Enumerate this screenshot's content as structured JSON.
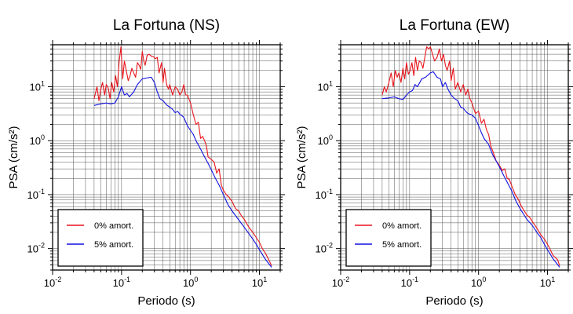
{
  "colors": {
    "undamped": "#e8141b",
    "damped": "#1010e0",
    "grid": "#555555",
    "frame": "#000000"
  },
  "chart_data": [
    {
      "type": "line",
      "title": "La Fortuna (NS)",
      "xlabel": "Periodo (s)",
      "ylabel": "PSA (cm/s²)",
      "xscale": "log",
      "yscale": "log",
      "xlim": [
        0.01,
        20
      ],
      "ylim": [
        0.004,
        60
      ],
      "x_ticks": [
        {
          "value": 0.01,
          "base": "10",
          "exp": "-2"
        },
        {
          "value": 0.1,
          "base": "10",
          "exp": "-1"
        },
        {
          "value": 1,
          "base": "10",
          "exp": "0"
        },
        {
          "value": 10,
          "base": "10",
          "exp": "1"
        }
      ],
      "y_ticks": [
        {
          "value": 0.01,
          "base": "10",
          "exp": "-2"
        },
        {
          "value": 0.1,
          "base": "10",
          "exp": "-1"
        },
        {
          "value": 1,
          "base": "10",
          "exp": "0"
        },
        {
          "value": 10,
          "base": "10",
          "exp": "1"
        }
      ],
      "grid": true,
      "legend_position": "bottom-left",
      "series": [
        {
          "name": "0% amort.",
          "color_key": "undamped",
          "x": [
            0.04,
            0.044,
            0.047,
            0.05,
            0.053,
            0.057,
            0.06,
            0.064,
            0.068,
            0.072,
            0.077,
            0.082,
            0.087,
            0.092,
            0.098,
            0.104,
            0.11,
            0.117,
            0.125,
            0.133,
            0.141,
            0.15,
            0.16,
            0.17,
            0.18,
            0.19,
            0.2,
            0.21,
            0.22,
            0.235,
            0.25,
            0.27,
            0.29,
            0.31,
            0.33,
            0.35,
            0.38,
            0.4,
            0.42,
            0.45,
            0.48,
            0.5,
            0.55,
            0.6,
            0.65,
            0.7,
            0.75,
            0.8,
            0.85,
            0.9,
            1.0,
            1.1,
            1.2,
            1.3,
            1.4,
            1.5,
            1.6,
            1.7,
            1.8,
            2.0,
            2.2,
            2.4,
            2.6,
            2.8,
            3.0,
            3.3,
            3.6,
            4.0,
            4.5,
            5.0,
            5.5,
            6.0,
            7.0,
            8.0,
            9.0,
            10.0,
            11.0,
            12.0,
            13.0,
            14.0,
            15.0
          ],
          "y": [
            6,
            10,
            5.5,
            9,
            12,
            7,
            11,
            9.5,
            6,
            12,
            8,
            16,
            10,
            28,
            55,
            14,
            30,
            20,
            13,
            16,
            22,
            18,
            15,
            28,
            25,
            21,
            45,
            30,
            25,
            38,
            40,
            37,
            36,
            33,
            35,
            18,
            28,
            12,
            22,
            11,
            9,
            11,
            7,
            10,
            9,
            7,
            8,
            11,
            7,
            7,
            5,
            3,
            2,
            2.2,
            1.1,
            1.2,
            1.0,
            0.8,
            0.5,
            0.45,
            0.4,
            0.25,
            0.3,
            0.15,
            0.12,
            0.1,
            0.09,
            0.075,
            0.055,
            0.05,
            0.04,
            0.035,
            0.025,
            0.02,
            0.016,
            0.013,
            0.01,
            0.0085,
            0.007,
            0.0058,
            0.0048
          ]
        },
        {
          "name": "5% amort.",
          "color_key": "damped",
          "x": [
            0.04,
            0.05,
            0.06,
            0.07,
            0.08,
            0.09,
            0.1,
            0.11,
            0.12,
            0.13,
            0.15,
            0.17,
            0.2,
            0.23,
            0.27,
            0.3,
            0.33,
            0.36,
            0.4,
            0.45,
            0.5,
            0.55,
            0.6,
            0.65,
            0.7,
            0.75,
            0.8,
            0.9,
            1.0,
            1.1,
            1.2,
            1.4,
            1.6,
            1.8,
            2.0,
            2.3,
            2.6,
            3.0,
            3.5,
            4.0,
            5.0,
            6.0,
            7.0,
            8.0,
            9.0,
            10.0,
            12.0,
            15.0
          ],
          "y": [
            4.5,
            4.8,
            5.0,
            4.8,
            5.0,
            6.5,
            10,
            7,
            7.5,
            6.5,
            8,
            11,
            14,
            14.5,
            15,
            12,
            8,
            6,
            5.5,
            4.6,
            4.2,
            3.8,
            3.3,
            3.5,
            3.1,
            2.9,
            2.7,
            1.9,
            1.55,
            1.3,
            1.0,
            0.7,
            0.5,
            0.38,
            0.29,
            0.2,
            0.15,
            0.1,
            0.065,
            0.05,
            0.034,
            0.025,
            0.019,
            0.015,
            0.012,
            0.0095,
            0.0065,
            0.0045
          ]
        }
      ]
    },
    {
      "type": "line",
      "title": "La Fortuna (EW)",
      "xlabel": "Periodo (s)",
      "ylabel": "PSA (cm/s²)",
      "xscale": "log",
      "yscale": "log",
      "xlim": [
        0.01,
        20
      ],
      "ylim": [
        0.004,
        60
      ],
      "x_ticks": [
        {
          "value": 0.01,
          "base": "10",
          "exp": "-2"
        },
        {
          "value": 0.1,
          "base": "10",
          "exp": "-1"
        },
        {
          "value": 1,
          "base": "10",
          "exp": "0"
        },
        {
          "value": 10,
          "base": "10",
          "exp": "1"
        }
      ],
      "y_ticks": [
        {
          "value": 0.01,
          "base": "10",
          "exp": "-2"
        },
        {
          "value": 0.1,
          "base": "10",
          "exp": "-1"
        },
        {
          "value": 1,
          "base": "10",
          "exp": "0"
        },
        {
          "value": 10,
          "base": "10",
          "exp": "1"
        }
      ],
      "grid": true,
      "legend_position": "bottom-left",
      "series": [
        {
          "name": "0% amort.",
          "color_key": "undamped",
          "x": [
            0.04,
            0.043,
            0.046,
            0.05,
            0.054,
            0.058,
            0.062,
            0.066,
            0.07,
            0.075,
            0.08,
            0.085,
            0.09,
            0.096,
            0.102,
            0.108,
            0.115,
            0.122,
            0.13,
            0.138,
            0.147,
            0.156,
            0.166,
            0.177,
            0.19,
            0.2,
            0.215,
            0.23,
            0.25,
            0.27,
            0.29,
            0.31,
            0.33,
            0.35,
            0.38,
            0.4,
            0.43,
            0.46,
            0.5,
            0.55,
            0.6,
            0.65,
            0.7,
            0.75,
            0.8,
            0.9,
            1.0,
            1.1,
            1.2,
            1.3,
            1.4,
            1.5,
            1.6,
            1.8,
            2.0,
            2.2,
            2.4,
            2.6,
            2.8,
            3.0,
            3.4,
            3.8,
            4.2,
            4.6,
            5.0,
            5.5,
            6.0,
            7.0,
            8.0,
            9.0,
            10.0,
            11.0,
            12.0,
            13.0,
            14.0,
            15.0
          ],
          "y": [
            7,
            10,
            8,
            12,
            18,
            10,
            20,
            15,
            18,
            12,
            22,
            14,
            28,
            17,
            20,
            28,
            16,
            35,
            20,
            30,
            28,
            22,
            35,
            55,
            50,
            55,
            40,
            30,
            35,
            50,
            30,
            40,
            25,
            20,
            30,
            13,
            22,
            9,
            12,
            8,
            11,
            7,
            9,
            6,
            5,
            3.2,
            3.5,
            2.1,
            2.5,
            1.6,
            1.3,
            0.8,
            0.65,
            0.42,
            0.35,
            0.28,
            0.3,
            0.2,
            0.19,
            0.15,
            0.1,
            0.08,
            0.06,
            0.05,
            0.042,
            0.038,
            0.032,
            0.024,
            0.018,
            0.015,
            0.012,
            0.0095,
            0.0075,
            0.0068,
            0.0062,
            0.0048
          ]
        },
        {
          "name": "5% amort.",
          "color_key": "damped",
          "x": [
            0.04,
            0.05,
            0.06,
            0.07,
            0.08,
            0.09,
            0.1,
            0.11,
            0.12,
            0.13,
            0.15,
            0.17,
            0.2,
            0.22,
            0.25,
            0.28,
            0.3,
            0.33,
            0.36,
            0.4,
            0.45,
            0.5,
            0.55,
            0.6,
            0.65,
            0.7,
            0.8,
            0.9,
            1.0,
            1.1,
            1.2,
            1.4,
            1.6,
            1.8,
            2.0,
            2.3,
            2.6,
            3.0,
            3.5,
            4.0,
            5.0,
            6.0,
            7.0,
            8.0,
            9.0,
            10.0,
            12.0,
            15.0
          ],
          "y": [
            6,
            6.2,
            6.5,
            6,
            5.8,
            7,
            8,
            8.5,
            11,
            10,
            14,
            15,
            18,
            19,
            15,
            14,
            10,
            12,
            9,
            7,
            6,
            5.5,
            4.2,
            4.0,
            3.5,
            3.2,
            3.0,
            2.6,
            1.9,
            1.4,
            1.1,
            0.85,
            0.55,
            0.42,
            0.33,
            0.23,
            0.17,
            0.12,
            0.075,
            0.055,
            0.035,
            0.027,
            0.02,
            0.016,
            0.012,
            0.0095,
            0.0065,
            0.0045
          ]
        }
      ]
    }
  ]
}
